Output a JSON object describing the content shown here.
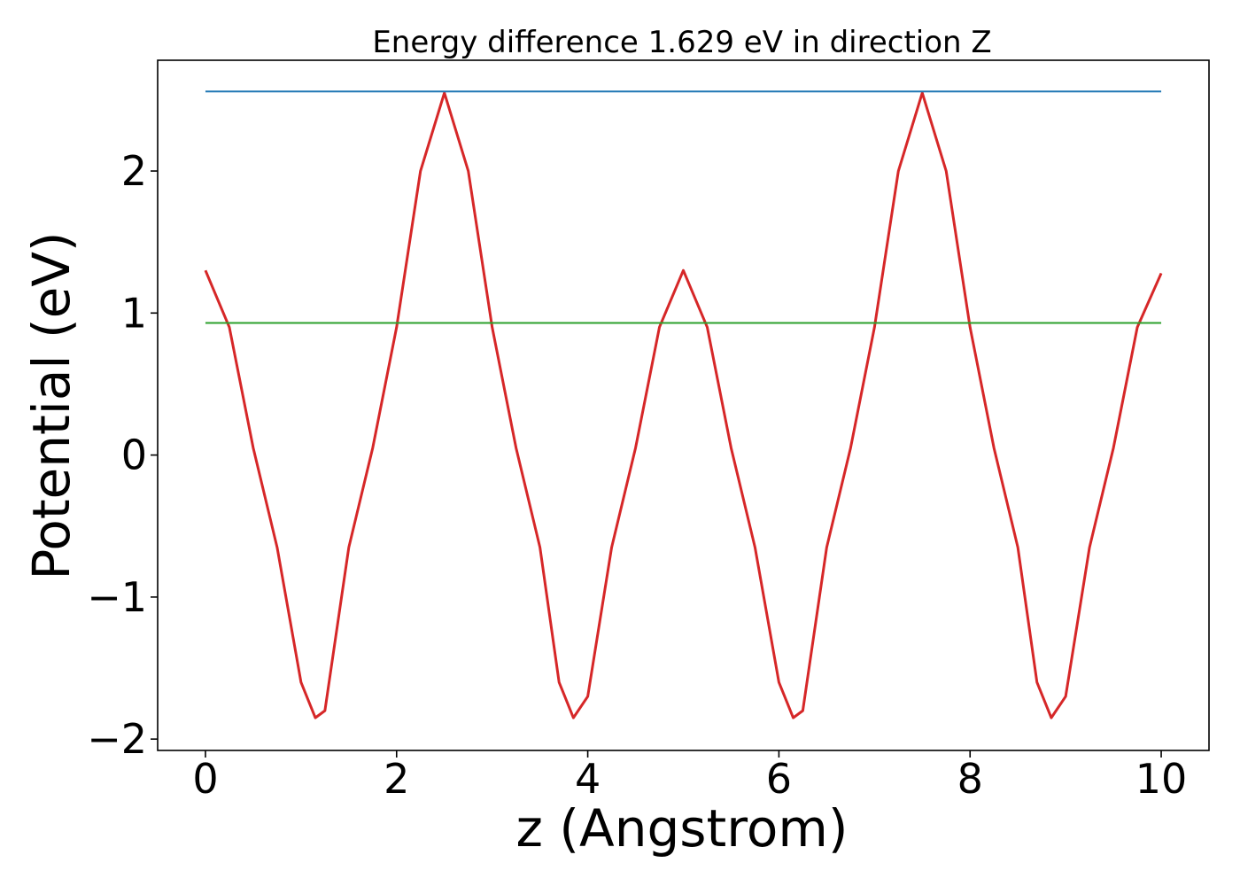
{
  "chart_data": {
    "type": "line",
    "title": "Energy difference 1.629 eV in direction Z",
    "xlabel": "z (Angstrom)",
    "ylabel": "Potential (eV)",
    "xlim": [
      -0.5,
      10.5
    ],
    "ylim": [
      -2.08,
      2.78
    ],
    "xticks": [
      0,
      2,
      4,
      6,
      8,
      10
    ],
    "xtick_labels": [
      "0",
      "2",
      "4",
      "6",
      "8",
      "10"
    ],
    "yticks": [
      -2,
      -1,
      0,
      1,
      2
    ],
    "ytick_labels": [
      "−2",
      "−1",
      "0",
      "1",
      "2"
    ],
    "grid": false,
    "series": [
      {
        "color": "#d62728",
        "x": [
          0,
          0.25,
          0.5,
          0.75,
          1.0,
          1.15,
          1.25,
          1.5,
          1.75,
          2.0,
          2.25,
          2.5,
          2.75,
          3.0,
          3.25,
          3.5,
          3.7,
          3.85,
          4.0,
          4.25,
          4.5,
          4.75,
          5.0,
          5.25,
          5.5,
          5.75,
          6.0,
          6.15,
          6.25,
          6.5,
          6.75,
          7.0,
          7.25,
          7.5,
          7.75,
          8.0,
          8.25,
          8.5,
          8.7,
          8.85,
          9.0,
          9.25,
          9.5,
          9.75,
          10.0
        ],
        "y": [
          1.3,
          0.9,
          0.05,
          -0.65,
          -1.6,
          -1.85,
          -1.8,
          -0.65,
          0.05,
          0.9,
          2.0,
          2.55,
          2.0,
          0.9,
          0.05,
          -0.65,
          -1.6,
          -1.85,
          -1.7,
          -0.65,
          0.05,
          0.9,
          1.3,
          0.9,
          0.05,
          -0.65,
          -1.6,
          -1.85,
          -1.8,
          -0.65,
          0.05,
          0.9,
          2.0,
          2.55,
          2.0,
          0.9,
          0.05,
          -0.65,
          -1.6,
          -1.85,
          -1.7,
          -0.65,
          0.05,
          0.9,
          1.28
        ]
      },
      {
        "color": "#1f77b4",
        "x": [
          0,
          10
        ],
        "y": [
          2.56,
          2.56
        ]
      },
      {
        "color": "#2ca02c",
        "x": [
          0,
          10
        ],
        "y": [
          0.93,
          0.93
        ]
      }
    ]
  }
}
